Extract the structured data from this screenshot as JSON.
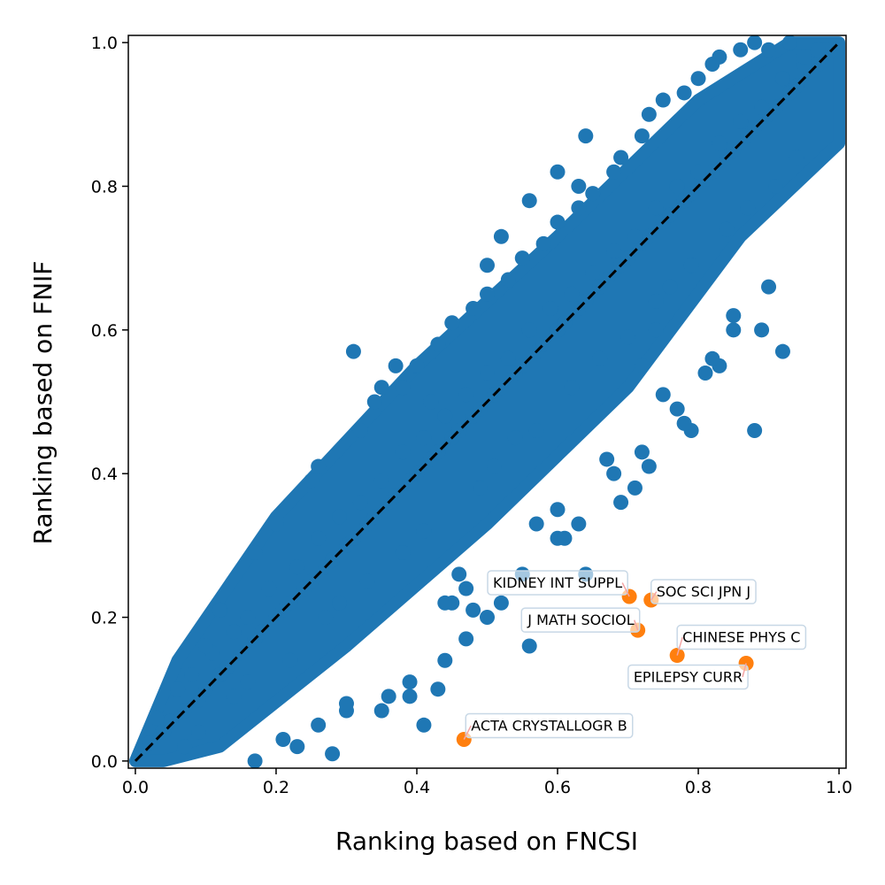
{
  "chart_data": {
    "type": "scatter",
    "title": "",
    "xlabel": "Ranking based on FNCSI",
    "ylabel": "Ranking based on FNIF",
    "xlim": [
      -0.01,
      1.01
    ],
    "ylim": [
      -0.01,
      1.01
    ],
    "xticks": [
      "0.0",
      "0.2",
      "0.4",
      "0.6",
      "0.8",
      "1.0"
    ],
    "yticks": [
      "0.0",
      "0.2",
      "0.4",
      "0.6",
      "0.8",
      "1.0"
    ],
    "reference_line": {
      "from": [
        0,
        0
      ],
      "to": [
        1,
        1
      ],
      "style": "dashed",
      "color": "#000000"
    },
    "grid": false,
    "legend": "none",
    "series": [
      {
        "color": "#1f77b4",
        "x": [
          0.005,
          0.02,
          0.04,
          0.05,
          0.07,
          0.09,
          0.1,
          0.12,
          0.13,
          0.15,
          0.17,
          0.18,
          0.2,
          0.21,
          0.22,
          0.24,
          0.25,
          0.27,
          0.28,
          0.3,
          0.31,
          0.33,
          0.34,
          0.36,
          0.37,
          0.39,
          0.4,
          0.42,
          0.43,
          0.45,
          0.46,
          0.48,
          0.49,
          0.51,
          0.52,
          0.54,
          0.55,
          0.57,
          0.58,
          0.6,
          0.61,
          0.63,
          0.64,
          0.66,
          0.67,
          0.69,
          0.7,
          0.72,
          0.73,
          0.75,
          0.76,
          0.78,
          0.79,
          0.81,
          0.82,
          0.84,
          0.85,
          0.87,
          0.88,
          0.9,
          0.91,
          0.93,
          0.94,
          0.96,
          0.97,
          0.99,
          0.03,
          0.06,
          0.08,
          0.11,
          0.14,
          0.16,
          0.19,
          0.23,
          0.26,
          0.29,
          0.32,
          0.35,
          0.38,
          0.41,
          0.44,
          0.47,
          0.5,
          0.53,
          0.56,
          0.59,
          0.62,
          0.65,
          0.68,
          0.71,
          0.74,
          0.77,
          0.8,
          0.83,
          0.86,
          0.89,
          0.92,
          0.95,
          0.98,
          0.17,
          0.21,
          0.3,
          0.36,
          0.39,
          0.44,
          0.47,
          0.52,
          0.55,
          0.6,
          0.63,
          0.68,
          0.72,
          0.77,
          0.81,
          0.85,
          0.1,
          0.12,
          0.17,
          0.2,
          0.25,
          0.26,
          0.32,
          0.34,
          0.35,
          0.37,
          0.43,
          0.45,
          0.48,
          0.5,
          0.53,
          0.55,
          0.58,
          0.6,
          0.63,
          0.65,
          0.68,
          0.69,
          0.72,
          0.73,
          0.75,
          0.78,
          0.8,
          0.82,
          0.83,
          0.86,
          0.88,
          0.9,
          0.93,
          0.95,
          0.97,
          0.07,
          0.09,
          0.14,
          0.16,
          0.22,
          0.27,
          0.29,
          0.33,
          0.38,
          0.41,
          0.49,
          0.51,
          0.54,
          0.57,
          0.62,
          0.66,
          0.7,
          0.74,
          0.76,
          0.79,
          0.84,
          0.87,
          0.91,
          0.94,
          0.31,
          0.38,
          0.42,
          0.4,
          0.5,
          0.52,
          0.56,
          0.6,
          0.63,
          0.64,
          0.72,
          0.75,
          0.79,
          0.83,
          0.88,
          0.92,
          0.89,
          0.61,
          0.64,
          0.67,
          0.73,
          0.46,
          0.47,
          0.48,
          0.45,
          0.5,
          0.56,
          0.44,
          0.78,
          0.82,
          0.69,
          0.71,
          0.74,
          0.23,
          0.26,
          0.28,
          0.3,
          0.35,
          0.39,
          0.41,
          0.43,
          0.85,
          0.9,
          0.6,
          0.57
        ],
        "y": [
          0.005,
          0.025,
          0.04,
          0.055,
          0.07,
          0.085,
          0.1,
          0.12,
          0.13,
          0.15,
          0.17,
          0.18,
          0.2,
          0.21,
          0.22,
          0.24,
          0.25,
          0.27,
          0.28,
          0.3,
          0.31,
          0.33,
          0.34,
          0.36,
          0.37,
          0.39,
          0.4,
          0.42,
          0.43,
          0.45,
          0.46,
          0.48,
          0.49,
          0.51,
          0.52,
          0.54,
          0.55,
          0.57,
          0.58,
          0.6,
          0.61,
          0.63,
          0.64,
          0.66,
          0.67,
          0.69,
          0.7,
          0.72,
          0.73,
          0.75,
          0.76,
          0.78,
          0.79,
          0.81,
          0.82,
          0.84,
          0.85,
          0.87,
          0.88,
          0.9,
          0.91,
          0.93,
          0.94,
          0.96,
          0.97,
          0.99,
          0.06,
          0.1,
          0.12,
          0.15,
          0.18,
          0.2,
          0.24,
          0.27,
          0.31,
          0.34,
          0.36,
          0.39,
          0.43,
          0.45,
          0.48,
          0.51,
          0.54,
          0.56,
          0.6,
          0.63,
          0.65,
          0.68,
          0.71,
          0.73,
          0.77,
          0.8,
          0.82,
          0.86,
          0.89,
          0.91,
          0.95,
          0.97,
          0.99,
          0.0,
          0.03,
          0.07,
          0.09,
          0.11,
          0.14,
          0.17,
          0.22,
          0.26,
          0.31,
          0.33,
          0.4,
          0.43,
          0.49,
          0.54,
          0.6,
          0.16,
          0.21,
          0.29,
          0.33,
          0.39,
          0.41,
          0.46,
          0.5,
          0.52,
          0.55,
          0.58,
          0.61,
          0.63,
          0.65,
          0.67,
          0.7,
          0.72,
          0.75,
          0.77,
          0.79,
          0.82,
          0.84,
          0.87,
          0.9,
          0.92,
          0.93,
          0.95,
          0.97,
          0.98,
          0.99,
          1.0,
          0.99,
          1.0,
          0.98,
          0.99,
          0.02,
          0.04,
          0.09,
          0.11,
          0.14,
          0.2,
          0.22,
          0.25,
          0.29,
          0.32,
          0.38,
          0.41,
          0.45,
          0.46,
          0.52,
          0.56,
          0.59,
          0.64,
          0.66,
          0.69,
          0.74,
          0.77,
          0.8,
          0.84,
          0.57,
          0.52,
          0.5,
          0.55,
          0.69,
          0.73,
          0.78,
          0.82,
          0.8,
          0.87,
          0.55,
          0.51,
          0.46,
          0.55,
          0.46,
          0.57,
          0.6,
          0.31,
          0.26,
          0.42,
          0.41,
          0.26,
          0.24,
          0.21,
          0.22,
          0.2,
          0.16,
          0.22,
          0.47,
          0.56,
          0.36,
          0.38,
          0.6,
          0.02,
          0.05,
          0.01,
          0.08,
          0.07,
          0.09,
          0.05,
          0.1,
          0.62,
          0.66,
          0.35,
          0.33
        ]
      },
      {
        "color": "#ff7f0e",
        "x": [
          0.467,
          0.702,
          0.733,
          0.714,
          0.77,
          0.868
        ],
        "y": [
          0.03,
          0.229,
          0.224,
          0.182,
          0.147,
          0.136
        ]
      }
    ],
    "annotations": [
      {
        "text": "ACTA CRYSTALLOGR B",
        "x": 0.467,
        "y": 0.03
      },
      {
        "text": "KIDNEY INT SUPPL",
        "x": 0.702,
        "y": 0.229
      },
      {
        "text": "SOC SCI JPN J",
        "x": 0.733,
        "y": 0.224
      },
      {
        "text": "J MATH SOCIOL",
        "x": 0.714,
        "y": 0.182
      },
      {
        "text": "CHINESE PHYS C",
        "x": 0.77,
        "y": 0.147
      },
      {
        "text": "EPILEPSY CURR",
        "x": 0.868,
        "y": 0.136
      }
    ]
  }
}
